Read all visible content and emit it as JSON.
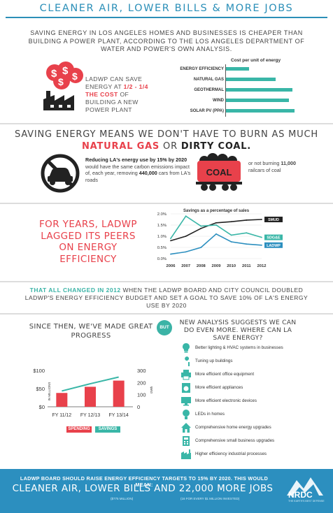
{
  "header": {
    "title": "CLEANER AIR, LOWER BILLS & MORE JOBS",
    "intro": "SAVING ENERGY IN LOS ANGELES HOMES AND BUSINESSES IS CHEAPER THAN BUILDING A POWER PLANT, ACCORDING TO THE LOS ANGELES DEPARTMENT OF WATER AND POWER'S OWN ANALYSIS."
  },
  "cost": {
    "ladwp_text_a": "LADWP CAN SAVE ENERGY AT ",
    "ladwp_text_highlight": "1/2 - 1/4 THE COST",
    "ladwp_text_b": " OF BUILDING A NEW POWER PLANT",
    "chart_title": "Cost per unit of energy"
  },
  "burn": {
    "title_a": "SAVING ENERGY MEANS WE DON'T HAVE TO BURN AS MUCH ",
    "natural_gas": "NATURAL GAS",
    "or": " OR ",
    "dirty_coal": "DIRTY COAL.",
    "text_a": "Reducing LA's energy use by 15% by 2020",
    "text_b": " would have the same carbon emissions impact of, each year, removing ",
    "cars": "440,000",
    "text_c": " cars from LA's roads",
    "coal_label": "COAL",
    "rail_a": "or not burning ",
    "railcars": "11,000",
    "rail_b": " railcars of coal"
  },
  "lag": {
    "title": "FOR YEARS, LADWP LAGGED ITS PEERS ON ENERGY EFFICIENCY"
  },
  "changed": {
    "highlight": "THAT ALL CHANGED IN 2012",
    "rest": " WHEN THE LADWP BOARD AND CITY COUNCIL DOUBLED LADWP'S ENERGY EFFICIENCY BUDGET AND SET A GOAL TO SAVE 10% OF LA'S ENERGY USE BY 2020"
  },
  "progress": {
    "title": "SINCE THEN, WE'VE MADE GREAT PROGRESS",
    "but": "BUT",
    "suggests": "NEW ANALYSIS SUGGESTS WE CAN DO EVEN MORE. WHERE CAN LA SAVE ENERGY?"
  },
  "measures": [
    {
      "label": "Better lighting & HVAC systems in businesses",
      "icon": "lightbulb-icon"
    },
    {
      "label": "Tuning up buildings",
      "icon": "wrench-icon"
    },
    {
      "label": "More efficient office equipment",
      "icon": "printer-icon"
    },
    {
      "label": "More efficient appliances",
      "icon": "appliance-icon"
    },
    {
      "label": "More efficient electronic devices",
      "icon": "monitor-icon"
    },
    {
      "label": "LEDs in homes",
      "icon": "led-bulb-icon"
    },
    {
      "label": "Comprehensive home energy upgrades",
      "icon": "house-icon"
    },
    {
      "label": "Comprehensive small business upgrades",
      "icon": "calculator-icon"
    },
    {
      "label": "Higher efficiency industrial processes",
      "icon": "factory-icon"
    }
  ],
  "footer": {
    "line1": "LADWP BOARD SHOULD RAISE ENERGY EFFICIENCY TARGETS TO 15% BY 2020. THIS WOULD MEAN:",
    "line2": "CLEANER AIR, LOWER BILLS AND 22,000 MORE JOBS",
    "sub_left": "($775 MILLION)",
    "sub_right": "(16 FOR EVERY $1 MILLION INVESTED)",
    "logo": "NRDC",
    "tagline": "THE EARTH'S BEST DEFENSE"
  },
  "colors": {
    "teal": "#39b6a7",
    "red": "#e8414b",
    "blue": "#2c8fbf",
    "dark": "#222222"
  },
  "chart_data": [
    {
      "type": "bar",
      "title": "Cost per unit of energy",
      "orientation": "horizontal",
      "categories": [
        "ENERGY EFFICIENCY",
        "NATURAL GAS",
        "GEOTHERMAL",
        "WIND",
        "SOLAR PV (PPA)"
      ],
      "values": [
        0.22,
        0.47,
        0.63,
        0.6,
        0.65
      ],
      "xlim": [
        0,
        1
      ]
    },
    {
      "type": "line",
      "title": "Savings as a percentage of sales",
      "x": [
        "2006",
        "2007",
        "2008",
        "2009",
        "2010",
        "2011",
        "2012"
      ],
      "ylim": [
        0,
        2.0
      ],
      "yticks": [
        "0.0%",
        "0.5%",
        "1.0%",
        "1.5%",
        "2.0%"
      ],
      "series": [
        {
          "name": "SMUD",
          "values": [
            0.8,
            1.0,
            1.35,
            1.6,
            1.65,
            1.72,
            1.75
          ],
          "color": "#222222"
        },
        {
          "name": "SDG&E",
          "values": [
            0.9,
            1.9,
            1.45,
            1.5,
            1.05,
            1.15,
            0.95
          ],
          "color": "#39b6a7"
        },
        {
          "name": "LADWP",
          "values": [
            0.2,
            0.3,
            0.5,
            1.1,
            0.75,
            0.65,
            0.6
          ],
          "color": "#2c8fbf"
        }
      ]
    },
    {
      "type": "bar",
      "title": "",
      "categories": [
        "FY 11/12",
        "FY 12/13",
        "FY 13/14"
      ],
      "left_axis_label": "IN MILLIONS",
      "right_axis_label": "GWh",
      "left_ticks": [
        "$0",
        "$50",
        "$100"
      ],
      "right_ticks": [
        "0",
        "100",
        "200",
        "300"
      ],
      "ylim_left": [
        0,
        100
      ],
      "ylim_right": [
        0,
        300
      ],
      "series": [
        {
          "name": "SPENDING",
          "values": [
            38,
            55,
            72
          ],
          "color": "#e8414b",
          "axis": "left"
        },
        {
          "name": "SAVINGS",
          "values": [
            130,
            190,
            245
          ],
          "color": "#39b6a7",
          "axis": "right"
        }
      ]
    }
  ]
}
